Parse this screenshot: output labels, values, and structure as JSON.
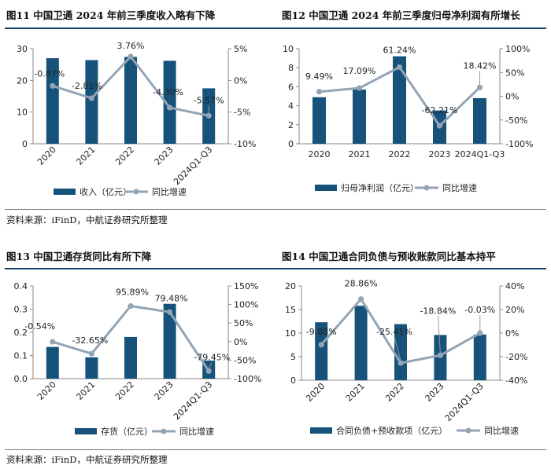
{
  "source_top": "资料来源：iFinD，中航证券研究所整理",
  "source_bottom": "资料来源：iFinD，中航证券研究所整理",
  "colors": {
    "bar": "#16527a",
    "line": "#93a4b5",
    "axis": "#888888",
    "rule": "#14436c"
  },
  "chart_data": [
    {
      "id": "fig11",
      "title": "图11  中国卫通 2024 年前三季度收入略有下降",
      "type": "bar",
      "categories": [
        "2020",
        "2021",
        "2022",
        "2023",
        "2024Q1-Q3"
      ],
      "series": [
        {
          "name": "收入（亿元）",
          "type": "bar",
          "axis": "left",
          "values": [
            27.0,
            26.4,
            27.4,
            26.2,
            17.5
          ]
        },
        {
          "name": "同比增速",
          "type": "line",
          "axis": "right",
          "values": [
            -0.87,
            -2.81,
            3.76,
            -4.3,
            -5.57
          ]
        }
      ],
      "data_labels": [
        "-0.87%",
        "-2.81%",
        "3.76%",
        "-4.30%",
        "-5.57%"
      ],
      "left_axis": {
        "ylim": [
          0,
          30
        ],
        "ticks": [
          "0",
          "10",
          "20",
          "30"
        ],
        "tick_values": [
          0,
          10,
          20,
          30
        ]
      },
      "right_axis": {
        "ylim": [
          -10,
          5
        ],
        "ticks": [
          "-10%",
          "-5%",
          "0%",
          "5%"
        ],
        "tick_values": [
          -10,
          -5,
          0,
          5
        ]
      },
      "legend": [
        "收入（亿元）",
        "同比增速"
      ]
    },
    {
      "id": "fig12",
      "title": "图12  中国卫通 2024 年前三季度归母净利润有所增长",
      "type": "bar",
      "categories": [
        "2020",
        "2021",
        "2022",
        "2023",
        "2024Q1-Q3"
      ],
      "series": [
        {
          "name": "归母净利润（亿元）",
          "type": "bar",
          "axis": "left",
          "values": [
            4.9,
            5.7,
            9.2,
            3.5,
            4.8
          ]
        },
        {
          "name": "同比增速",
          "type": "line",
          "axis": "right",
          "values": [
            9.49,
            17.09,
            61.24,
            -62.21,
            18.42
          ]
        }
      ],
      "data_labels": [
        "9.49%",
        "17.09%",
        "61.24%",
        "-62.21%",
        "18.42%"
      ],
      "left_axis": {
        "ylim": [
          0,
          10
        ],
        "ticks": [
          "0",
          "2",
          "4",
          "6",
          "8",
          "10"
        ],
        "tick_values": [
          0,
          2,
          4,
          6,
          8,
          10
        ]
      },
      "right_axis": {
        "ylim": [
          -100,
          100
        ],
        "ticks": [
          "-100%",
          "-50%",
          "0%",
          "50%",
          "100%"
        ],
        "tick_values": [
          -100,
          -50,
          0,
          50,
          100
        ]
      },
      "legend": [
        "归母净利润（亿元）",
        "同比增速"
      ]
    },
    {
      "id": "fig13",
      "title": "图13  中国卫通存货同比有所下降",
      "type": "bar",
      "categories": [
        "2020",
        "2021",
        "2022",
        "2023",
        "2024Q1-Q3"
      ],
      "series": [
        {
          "name": "存货（亿元）",
          "type": "bar",
          "axis": "left",
          "values": [
            0.137,
            0.092,
            0.18,
            0.323,
            0.078
          ]
        },
        {
          "name": "同比增速",
          "type": "line",
          "axis": "right",
          "values": [
            -0.54,
            -32.65,
            95.89,
            79.48,
            -79.45
          ]
        }
      ],
      "data_labels": [
        "-0.54%",
        "-32.65%",
        "95.89%",
        "79.48%",
        "-79.45%"
      ],
      "left_axis": {
        "ylim": [
          0,
          0.4
        ],
        "ticks": [
          "0.0",
          "0.1",
          "0.2",
          "0.3",
          "0.4"
        ],
        "tick_values": [
          0,
          0.1,
          0.2,
          0.3,
          0.4
        ]
      },
      "right_axis": {
        "ylim": [
          -100,
          150
        ],
        "ticks": [
          "-100%",
          "-50%",
          "0%",
          "50%",
          "100%",
          "150%"
        ],
        "tick_values": [
          -100,
          -50,
          0,
          50,
          100,
          150
        ]
      },
      "legend": [
        "存货（亿元）",
        "同比增速"
      ]
    },
    {
      "id": "fig14",
      "title": "图14  中国卫通合同负债与预收账款同比基本持平",
      "type": "bar",
      "categories": [
        "2020",
        "2021",
        "2022",
        "2023",
        "2024Q1-Q3"
      ],
      "series": [
        {
          "name": "合同负债+预收款项（亿元）",
          "type": "bar",
          "axis": "left",
          "values": [
            12.3,
            15.8,
            11.9,
            9.6,
            9.7
          ]
        },
        {
          "name": "同比增速",
          "type": "line",
          "axis": "right",
          "values": [
            -9.88,
            28.86,
            -25.41,
            -18.84,
            -0.03
          ]
        }
      ],
      "data_labels": [
        "-9.88%",
        "28.86%",
        "-25.41%",
        "-18.84%",
        "-0.03%"
      ],
      "left_axis": {
        "ylim": [
          0,
          20
        ],
        "ticks": [
          "0",
          "5",
          "10",
          "15",
          "20"
        ],
        "tick_values": [
          0,
          5,
          10,
          15,
          20
        ]
      },
      "right_axis": {
        "ylim": [
          -40,
          40
        ],
        "ticks": [
          "-40%",
          "-20%",
          "0%",
          "20%",
          "40%"
        ],
        "tick_values": [
          -40,
          -20,
          0,
          20,
          40
        ]
      },
      "legend": [
        "合同负债+预收款项（亿元）",
        "同比增速"
      ]
    }
  ]
}
